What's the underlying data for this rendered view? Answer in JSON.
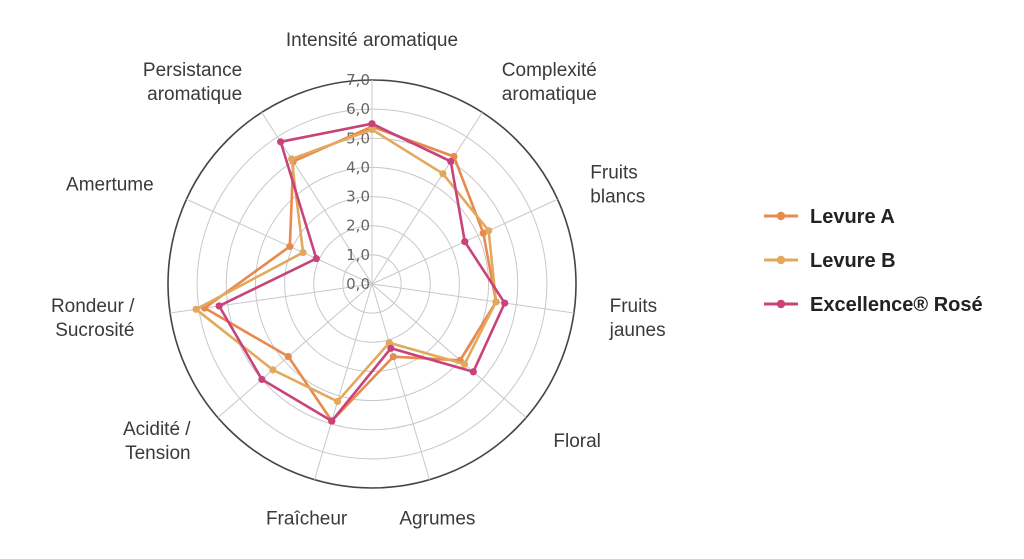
{
  "chart_data": {
    "type": "radar",
    "title": "",
    "rlim": [
      0,
      7
    ],
    "ticks": [
      "0,0",
      "1,0",
      "2,0",
      "3,0",
      "4,0",
      "5,0",
      "6,0",
      "7,0"
    ],
    "grid": true,
    "legend_position": "right",
    "axes": [
      [
        "Intensité aromatique"
      ],
      [
        "Complexité",
        "aromatique"
      ],
      [
        "Fruits",
        "blancs"
      ],
      [
        "Fruits",
        "jaunes"
      ],
      [
        "Floral"
      ],
      [
        "Agrumes"
      ],
      [
        "Fraîcheur"
      ],
      [
        "Acidité /",
        "Tension"
      ],
      [
        "Rondeur /",
        "Sucrosité"
      ],
      [
        "Amertume"
      ],
      [
        "Persistance",
        "aromatique"
      ]
    ],
    "series": [
      {
        "name": "Levure A",
        "color": "#E8894E",
        "values": [
          5.4,
          5.2,
          4.2,
          4.3,
          4.0,
          2.6,
          4.9,
          3.8,
          5.8,
          3.1,
          5.0
        ]
      },
      {
        "name": "Levure B",
        "color": "#E2A95D",
        "values": [
          5.3,
          4.5,
          4.4,
          4.3,
          4.2,
          2.1,
          4.2,
          4.5,
          6.1,
          2.6,
          5.1
        ]
      },
      {
        "name": "Excellence® Rosé",
        "color": "#C8437A",
        "values": [
          5.5,
          5.0,
          3.5,
          4.6,
          4.6,
          2.3,
          4.9,
          5.0,
          5.3,
          2.1,
          5.8
        ]
      }
    ]
  }
}
